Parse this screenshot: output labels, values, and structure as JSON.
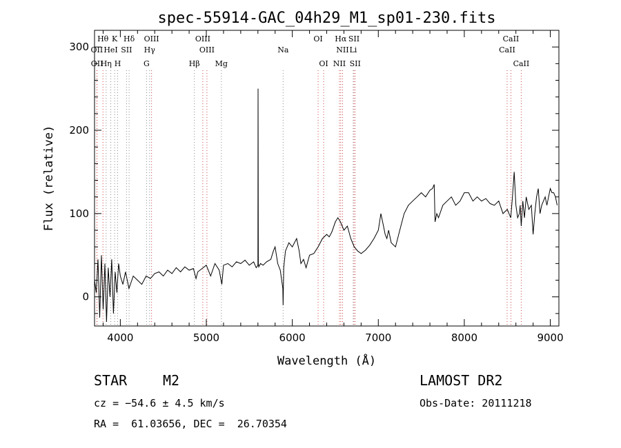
{
  "chart_data": {
    "type": "line",
    "title": "spec-55914-GAC_04h29_M1_sp01-230.fits",
    "xlabel": "Wavelength (Å)",
    "ylabel": "Flux (relative)",
    "xlim": [
      3700,
      9100
    ],
    "ylim": [
      -35,
      320
    ],
    "xticks": [
      4000,
      5000,
      6000,
      7000,
      8000,
      9000
    ],
    "yticks": [
      0,
      100,
      200,
      300
    ],
    "grid": false,
    "series": [
      {
        "x": [
          3700,
          3720,
          3740,
          3760,
          3780,
          3800,
          3820,
          3840,
          3860,
          3880,
          3900,
          3920,
          3940,
          3960,
          3980,
          4000,
          4030,
          4060,
          4100,
          4150,
          4200,
          4250,
          4300,
          4350,
          4400,
          4450,
          4500,
          4550,
          4600,
          4650,
          4700,
          4750,
          4800,
          4850,
          4880,
          4900,
          4950,
          5000,
          5050,
          5100,
          5150,
          5180,
          5200,
          5250,
          5300,
          5350,
          5400,
          5450,
          5500,
          5550,
          5580,
          5600,
          5602,
          5605,
          5610,
          5630,
          5660,
          5700,
          5750,
          5780,
          5800,
          5830,
          5860,
          5890,
          5893,
          5900,
          5920,
          5960,
          6000,
          6050,
          6080,
          6100,
          6130,
          6160,
          6200,
          6250,
          6300,
          6350,
          6400,
          6430,
          6460,
          6500,
          6530,
          6560,
          6600,
          6640,
          6680,
          6720,
          6760,
          6800,
          6850,
          6900,
          6950,
          7000,
          7030,
          7060,
          7080,
          7100,
          7120,
          7150,
          7200,
          7250,
          7300,
          7350,
          7400,
          7450,
          7500,
          7550,
          7600,
          7630,
          7650,
          7660,
          7680,
          7700,
          7750,
          7800,
          7850,
          7900,
          7950,
          8000,
          8050,
          8100,
          8150,
          8200,
          8250,
          8300,
          8350,
          8400,
          8450,
          8500,
          8540,
          8560,
          8580,
          8600,
          8620,
          8640,
          8650,
          8662,
          8680,
          8700,
          8720,
          8750,
          8780,
          8800,
          8820,
          8840,
          8860,
          8880,
          8900,
          8920,
          8940,
          8960,
          8980,
          9000,
          9020,
          9040,
          9060,
          9080
        ],
        "y": [
          20,
          5,
          45,
          -25,
          50,
          -15,
          40,
          -30,
          35,
          0,
          45,
          -20,
          30,
          5,
          40,
          25,
          15,
          30,
          10,
          25,
          20,
          15,
          25,
          22,
          28,
          30,
          25,
          32,
          28,
          35,
          30,
          36,
          32,
          34,
          22,
          30,
          34,
          38,
          25,
          40,
          32,
          15,
          38,
          40,
          36,
          42,
          40,
          44,
          38,
          42,
          35,
          38,
          250,
          40,
          36,
          40,
          38,
          42,
          45,
          55,
          60,
          40,
          32,
          10,
          -10,
          35,
          55,
          65,
          60,
          70,
          55,
          40,
          45,
          35,
          50,
          52,
          60,
          70,
          75,
          72,
          78,
          90,
          95,
          90,
          80,
          85,
          70,
          60,
          55,
          52,
          56,
          62,
          70,
          80,
          100,
          85,
          75,
          70,
          80,
          65,
          60,
          80,
          100,
          110,
          115,
          120,
          125,
          120,
          128,
          130,
          135,
          90,
          100,
          95,
          110,
          115,
          120,
          110,
          115,
          125,
          125,
          115,
          120,
          115,
          118,
          112,
          110,
          115,
          100,
          105,
          95,
          120,
          150,
          110,
          95,
          100,
          110,
          85,
          115,
          95,
          120,
          105,
          110,
          75,
          100,
          120,
          130,
          100,
          110,
          115,
          120,
          110,
          120,
          130,
          125,
          125,
          120,
          110
        ]
      }
    ],
    "line_markers": [
      {
        "label": "Hθ",
        "x": 3798,
        "row": 0,
        "color": "#cc4444"
      },
      {
        "label": "K",
        "x": 3934,
        "row": 0,
        "color": "#888888"
      },
      {
        "label": "Hδ",
        "x": 4102,
        "row": 0,
        "color": "#888888"
      },
      {
        "label": "OIII",
        "x": 4363,
        "row": 0,
        "color": "#cc4444"
      },
      {
        "label": "OIII",
        "x": 4959,
        "row": 0,
        "color": "#cc4444"
      },
      {
        "label": "OI",
        "x": 6300,
        "row": 0,
        "color": "#cc4444"
      },
      {
        "label": "Hα",
        "x": 6563,
        "row": 0,
        "color": "#cc4444"
      },
      {
        "label": "SII",
        "x": 6717,
        "row": 0,
        "color": "#cc4444"
      },
      {
        "label": "CaII",
        "x": 8542,
        "row": 0,
        "color": "#cc4444"
      },
      {
        "label": "OII",
        "x": 3727,
        "row": 1,
        "color": "#cc4444"
      },
      {
        "label": "HeI",
        "x": 3889,
        "row": 1,
        "color": "#888888"
      },
      {
        "label": "SII",
        "x": 4072,
        "row": 1,
        "color": "#888888"
      },
      {
        "label": "Hγ",
        "x": 4340,
        "row": 1,
        "color": "#888888"
      },
      {
        "label": "OIII",
        "x": 5007,
        "row": 1,
        "color": "#cc4444"
      },
      {
        "label": "Na",
        "x": 5893,
        "row": 1,
        "color": "#888888"
      },
      {
        "label": "NII",
        "x": 6584,
        "row": 1,
        "color": "#cc4444"
      },
      {
        "label": "Li",
        "x": 6708,
        "row": 1,
        "color": "#888888"
      },
      {
        "label": "CaII",
        "x": 8498,
        "row": 1,
        "color": "#cc4444"
      },
      {
        "label": "OII",
        "x": 3729,
        "row": 2,
        "color": "#cc4444"
      },
      {
        "label": "Hη",
        "x": 3835,
        "row": 2,
        "color": "#888888"
      },
      {
        "label": "H",
        "x": 3969,
        "row": 2,
        "color": "#888888"
      },
      {
        "label": "G",
        "x": 4305,
        "row": 2,
        "color": "#888888"
      },
      {
        "label": "Hβ",
        "x": 4861,
        "row": 2,
        "color": "#888888"
      },
      {
        "label": "Mg",
        "x": 5175,
        "row": 2,
        "color": "#888888"
      },
      {
        "label": "OI",
        "x": 6364,
        "row": 2,
        "color": "#cc4444"
      },
      {
        "label": "NII",
        "x": 6548,
        "row": 2,
        "color": "#cc4444"
      },
      {
        "label": "SII",
        "x": 6731,
        "row": 2,
        "color": "#cc4444"
      },
      {
        "label": "CaII",
        "x": 8662,
        "row": 2,
        "color": "#cc4444"
      }
    ]
  },
  "info": {
    "class_label": "STAR",
    "subclass_label": "M2",
    "survey": "LAMOST DR2",
    "cz": "cz = −54.6 ± 4.5 km/s",
    "obs_date": "Obs-Date: 20111218",
    "coords": "RA =  61.03656, DEC =  26.70354"
  }
}
